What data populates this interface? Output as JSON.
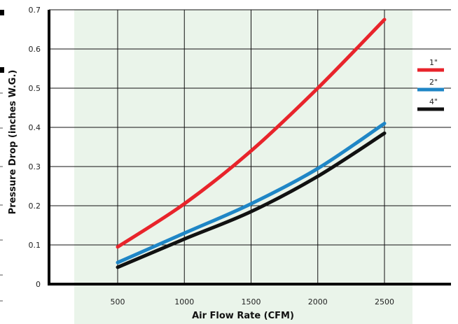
{
  "chart_data": {
    "type": "line",
    "title": "",
    "xlabel": "Air Flow Rate (CFM)",
    "ylabel": "Pressure Drop (inches W.G.)",
    "x": [
      500,
      1000,
      1500,
      2000,
      2500
    ],
    "xlim": [
      500,
      2500
    ],
    "ylim": [
      0,
      0.7
    ],
    "x_ticks": [
      "500",
      "1000",
      "1500",
      "2000",
      "2500"
    ],
    "y_ticks": [
      "0",
      "0.1",
      "0.2",
      "0.3",
      "0.4",
      "0.5",
      "0.6",
      "0.7"
    ],
    "grid": true,
    "legend_position": "right",
    "series": [
      {
        "name": "1\"",
        "color": "#e8242b",
        "values": [
          0.095,
          0.205,
          0.34,
          0.5,
          0.675
        ]
      },
      {
        "name": "2\"",
        "color": "#1f86c6",
        "values": [
          0.055,
          0.13,
          0.205,
          0.295,
          0.41
        ]
      },
      {
        "name": "4\"",
        "color": "#111111",
        "values": [
          0.043,
          0.115,
          0.185,
          0.275,
          0.385
        ]
      }
    ]
  }
}
